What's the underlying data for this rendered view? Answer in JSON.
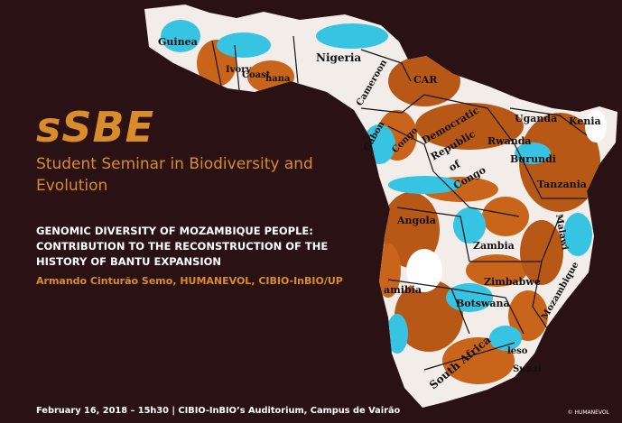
{
  "brand": "sSBE",
  "seminar": {
    "line1": "Student Seminar in Biodiversity and",
    "line2": "Evolution"
  },
  "talk": {
    "line1": "GENOMIC DIVERSITY OF MOZAMBIQUE PEOPLE:",
    "line2": "CONTRIBUTION TO THE RECONSTRUCTION OF THE",
    "line3": "HISTORY OF BANTU EXPANSION"
  },
  "speaker": "Armando Cinturão Semo, HUMANEVOL, CIBIO-InBIO/UP",
  "footer": "February 16, 2018 – 15h30 | CIBIO-InBIO’s Auditorium, Campus de Vairão",
  "copyright": "© HUMANEVOL",
  "map": {
    "countries": {
      "guinea": "Guinea",
      "ivory": "Ivory",
      "coast": "Coast",
      "ghana": "hana",
      "nigeria": "Nigeria",
      "cameroon": "Cameroon",
      "car": "CAR",
      "gabon": "Gabon",
      "congo": "Congo",
      "drc1": "Democratic",
      "drc2": "Republic",
      "drc3": "of",
      "drc4": "Congo",
      "uganda": "Uganda",
      "kenia": "Kenia",
      "rwanda": "Rwanda",
      "burundi": "Burundi",
      "tanzania": "Tanzania",
      "angola": "Angola",
      "zambia": "Zambia",
      "malawi": "Malawi",
      "zimbabwe": "Zimbabwe",
      "namibia": "amibia",
      "botswana": "Botswana",
      "mozambique": "Mozambique",
      "south_africa": "South Africa",
      "lesotho": "leso",
      "swaziland": "Swazi"
    }
  },
  "colors": {
    "background": "#2a1114",
    "accent": "#d98c2a",
    "heat_high": "#c9651a",
    "heat_low": "#37c3e2"
  }
}
